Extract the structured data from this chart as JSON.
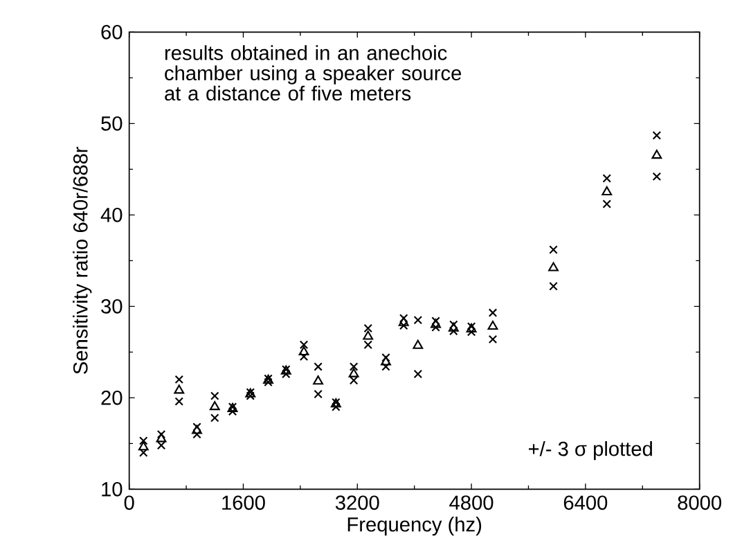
{
  "chart_data": {
    "type": "scatter",
    "xlabel": "Frequency (hz)",
    "ylabel": "Sensitivity ratio 640r/688r",
    "x": [
      200,
      450,
      700,
      950,
      1200,
      1450,
      1700,
      1950,
      2200,
      2450,
      2650,
      2900,
      3150,
      3350,
      3600,
      3850,
      4050,
      4300,
      4550,
      4800,
      5100,
      5950,
      6700,
      7400
    ],
    "series": [
      {
        "color": "#000000",
        "marker": "cross",
        "values": [
          15.3,
          16.0,
          22.0,
          16.8,
          20.2,
          19.0,
          20.6,
          22.1,
          23.1,
          25.8,
          23.4,
          19.5,
          23.4,
          27.6,
          24.4,
          28.7,
          28.5,
          28.4,
          28.0,
          27.8,
          29.3,
          36.2,
          44.0,
          48.7
        ]
      },
      {
        "color": "#000000",
        "marker": "triangle",
        "values": [
          14.6,
          15.5,
          20.8,
          16.4,
          19.0,
          18.8,
          20.4,
          21.9,
          22.9,
          25.0,
          21.8,
          19.3,
          22.6,
          26.7,
          23.9,
          28.2,
          25.7,
          28.0,
          27.6,
          27.5,
          27.8,
          34.2,
          42.5,
          46.5
        ]
      },
      {
        "color": "#000000",
        "marker": "cross",
        "values": [
          14.0,
          14.8,
          19.6,
          16.0,
          17.8,
          18.5,
          20.2,
          21.7,
          22.6,
          24.5,
          20.4,
          19.0,
          21.9,
          25.8,
          23.4,
          27.9,
          22.6,
          27.7,
          27.3,
          27.2,
          26.4,
          32.2,
          41.2,
          44.2
        ]
      }
    ],
    "xlim": [
      0,
      8000
    ],
    "xticks": [
      0,
      1600,
      3200,
      4800,
      6400,
      8000
    ],
    "ylim": [
      10,
      60
    ],
    "yticks": [
      10,
      20,
      30,
      40,
      50,
      60
    ],
    "annotations": [
      "results obtained in an anechoic chamber using a speaker source at a distance of five meters",
      "+/- 3 σ plotted"
    ]
  }
}
